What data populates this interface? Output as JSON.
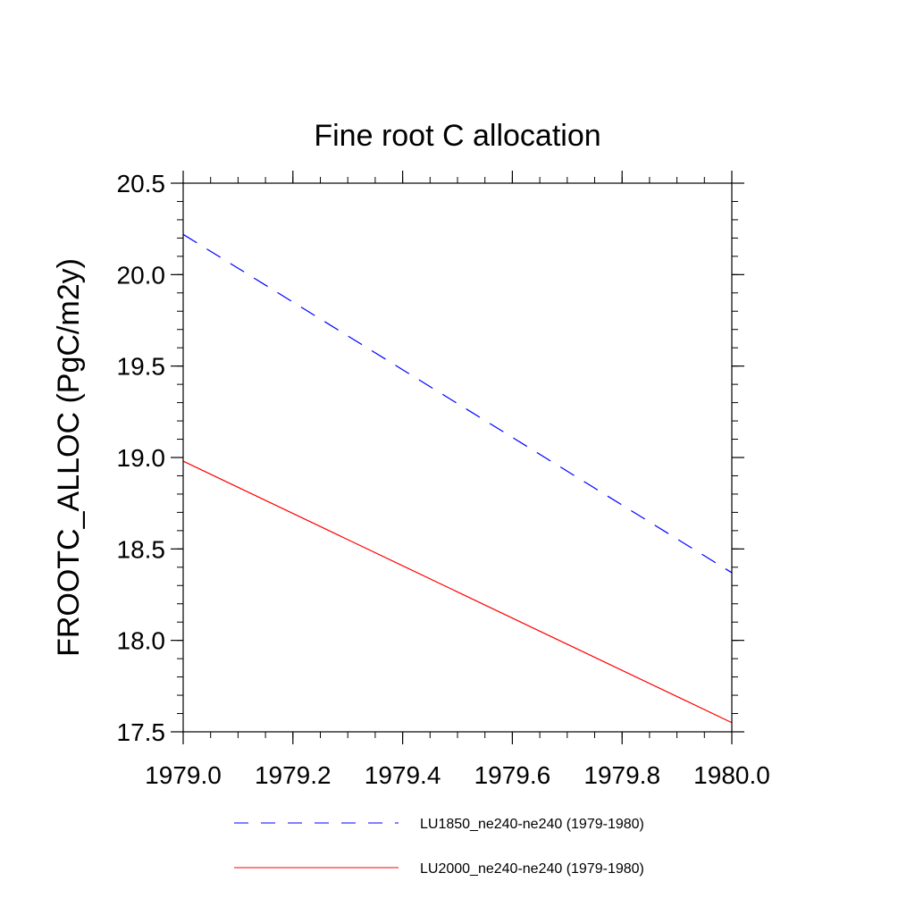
{
  "chart_data": {
    "type": "line",
    "title": "Fine root C allocation",
    "xlabel": "",
    "ylabel": "FROOTC_ALLOC  (PgC/m2y)",
    "xlim": [
      1979.0,
      1980.0
    ],
    "ylim": [
      17.5,
      20.5
    ],
    "xticks": [
      1979.0,
      1979.2,
      1979.4,
      1979.6,
      1979.8,
      1980.0
    ],
    "xtick_labels": [
      "1979.0",
      "1979.2",
      "1979.4",
      "1979.6",
      "1979.8",
      "1980.0"
    ],
    "yticks": [
      17.5,
      18.0,
      18.5,
      19.0,
      19.5,
      20.0,
      20.5
    ],
    "ytick_labels": [
      "17.5",
      "18.0",
      "18.5",
      "19.0",
      "19.5",
      "20.0",
      "20.5"
    ],
    "grid": false,
    "legend_position": "bottom",
    "series": [
      {
        "name": "LU1850_ne240-ne240 (1979-1980)",
        "color": "#0000ff",
        "line_style": "dashed",
        "x": [
          1979.0,
          1980.0
        ],
        "y": [
          20.22,
          18.37
        ]
      },
      {
        "name": "LU2000_ne240-ne240 (1979-1980)",
        "color": "#ff0000",
        "line_style": "solid",
        "x": [
          1979.0,
          1980.0
        ],
        "y": [
          18.98,
          17.55
        ]
      }
    ]
  }
}
